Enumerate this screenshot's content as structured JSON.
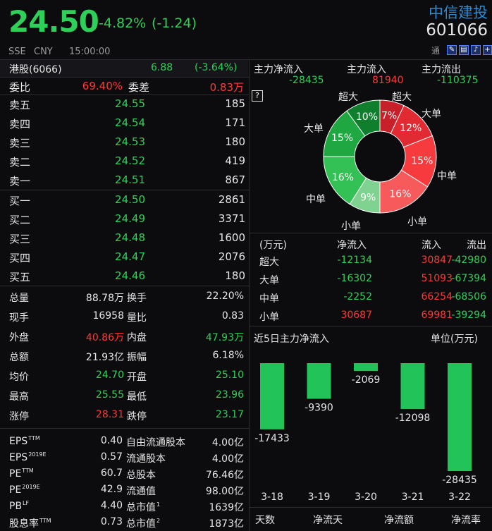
{
  "quote": {
    "price": "24.50",
    "change_pct": "-4.82%",
    "change_abs": "(-1.24)",
    "exchange": "SSE",
    "currency": "CNY",
    "time": "15:00:00"
  },
  "stock": {
    "name": "中信建投",
    "code": "601066",
    "tong_label": "通"
  },
  "hk": {
    "label": "港股(6066)",
    "price": "6.88",
    "change": "(-3.64%)"
  },
  "ratio": {
    "weibi_label": "委比",
    "weibi": "69.40%",
    "weicha_label": "委差",
    "weicha": "0.83万"
  },
  "asks": [
    {
      "label": "卖五",
      "price": "24.55",
      "vol": "185"
    },
    {
      "label": "卖四",
      "price": "24.54",
      "vol": "171"
    },
    {
      "label": "卖三",
      "price": "24.53",
      "vol": "180"
    },
    {
      "label": "卖二",
      "price": "24.52",
      "vol": "419"
    },
    {
      "label": "卖一",
      "price": "24.51",
      "vol": "867"
    }
  ],
  "bids": [
    {
      "label": "买一",
      "price": "24.50",
      "vol": "2861"
    },
    {
      "label": "买二",
      "price": "24.49",
      "vol": "3371"
    },
    {
      "label": "买三",
      "price": "24.48",
      "vol": "1600"
    },
    {
      "label": "买四",
      "price": "24.47",
      "vol": "2076"
    },
    {
      "label": "买五",
      "price": "24.46",
      "vol": "180"
    }
  ],
  "stats": [
    {
      "l1": "总量",
      "v1": "88.78万",
      "l2": "换手",
      "v2": "22.20%"
    },
    {
      "l1": "现手",
      "v1": "16958",
      "l2": "量比",
      "v2": "0.83"
    },
    {
      "l1": "外盘",
      "v1": "40.86万",
      "l2": "内盘",
      "v2": "47.93万"
    },
    {
      "l1": "总额",
      "v1": "21.93亿",
      "l2": "振幅",
      "v2": "6.18%"
    },
    {
      "l1": "均价",
      "v1": "24.70",
      "l2": "开盘",
      "v2": "25.10"
    },
    {
      "l1": "最高",
      "v1": "25.55",
      "l2": "最低",
      "v2": "23.96"
    },
    {
      "l1": "涨停",
      "v1": "28.31",
      "l2": "跌停",
      "v2": "23.17"
    }
  ],
  "fundamentals": [
    {
      "l1": "EPS",
      "s1": "TTM",
      "v1": "0.40",
      "l2": "自由流通股本",
      "s2": "",
      "v2": "4.00亿"
    },
    {
      "l1": "EPS",
      "s1": "2019E",
      "v1": "0.57",
      "l2": "流通股本",
      "s2": "",
      "v2": "4.00亿"
    },
    {
      "l1": "PE",
      "s1": "TTM",
      "v1": "60.7",
      "l2": "总股本",
      "s2": "",
      "v2": "76.46亿"
    },
    {
      "l1": "PE",
      "s1": "2019E",
      "v1": "42.9",
      "l2": "流通值",
      "s2": "",
      "v2": "98.00亿"
    },
    {
      "l1": "PB",
      "s1": "LF",
      "v1": "4.40",
      "l2": "总市值",
      "s2": "1",
      "v2": "1639亿"
    },
    {
      "l1": "股息率",
      "s1": "TTM",
      "v1": "0.73",
      "l2": "总市值",
      "s2": "2",
      "v2": "1873亿"
    }
  ],
  "flow_summary": {
    "in_label": "主力净流入",
    "in_value": "-28435",
    "flow_label": "主力流入",
    "flow_value": "81940",
    "out_label": "主力流出",
    "out_value": "-110375",
    "help": "?"
  },
  "donut": {
    "slices": [
      {
        "pct": 7,
        "label": "7%",
        "color": "#c8202a"
      },
      {
        "pct": 12,
        "label": "12%",
        "color": "#e22a32"
      },
      {
        "pct": 15,
        "label": "15%",
        "color": "#f73a3e"
      },
      {
        "pct": 16,
        "label": "16%",
        "color": "#f75a5a"
      },
      {
        "pct": 9,
        "label": "9%",
        "color": "#7fd28f"
      },
      {
        "pct": 16,
        "label": "16%",
        "color": "#33c156"
      },
      {
        "pct": 15,
        "label": "15%",
        "color": "#1fa841"
      },
      {
        "pct": 10,
        "label": "10%",
        "color": "#0f7f2e"
      }
    ],
    "outer_labels": [
      "超大",
      "超大",
      "大单",
      "大单",
      "中单",
      "中单",
      "小单",
      "小单"
    ]
  },
  "flow_table": {
    "headers": [
      "(万元)",
      "净流入",
      "流入",
      "流出"
    ],
    "rows": [
      {
        "name": "超大",
        "net": "-12134",
        "in": "30847",
        "out": "-42980"
      },
      {
        "name": "大单",
        "net": "-16302",
        "in": "51093",
        "out": "-67394"
      },
      {
        "name": "中单",
        "net": "-2252",
        "in": "66254",
        "out": "-68506"
      },
      {
        "name": "小单",
        "net": "30687",
        "in": "69981",
        "out": "-39294"
      }
    ]
  },
  "five_day": {
    "title": "近5日主力净流入",
    "unit": "单位(万元)"
  },
  "chart_data": {
    "type": "bar",
    "title": "近5日主力净流入",
    "ylabel": "单位(万元)",
    "categories": [
      "3-18",
      "3-19",
      "3-20",
      "3-21",
      "3-22"
    ],
    "values": [
      -17433,
      -9390,
      -2069,
      -12098,
      -28435
    ],
    "value_labels": [
      "-17433",
      "-9390",
      "-2069",
      "-12098",
      "-28435"
    ],
    "color": "#22c45a"
  },
  "footer": {
    "days": "天数",
    "net_days": "净流天",
    "net_amount": "净流额",
    "net_rate": "净流率"
  }
}
